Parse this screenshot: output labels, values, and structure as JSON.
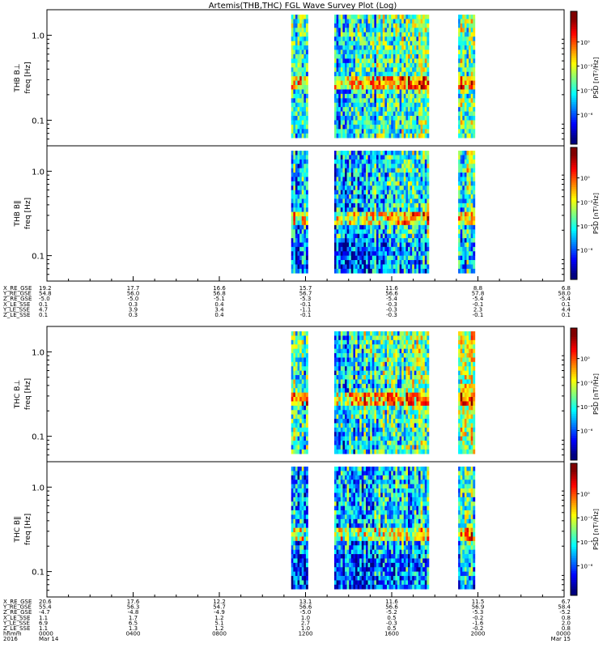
{
  "title": "Artemis(THB,THC) FGL Wave Survey Plot (Log)",
  "chart_data": [
    {
      "type": "heatmap",
      "probe": "THB",
      "component": "B⊥",
      "ylabel_parts": [
        "THB B⊥",
        "freq [Hz]"
      ],
      "yscale": "log",
      "ylim": [
        0.05,
        2.0
      ],
      "ytick_labels": [
        "1.0",
        "0.1"
      ],
      "ytick_values": [
        1.0,
        0.1
      ],
      "colorbar_label": "PSD [nT²/Hz]",
      "colorbar_ticks": [
        "10⁰",
        "10⁻²",
        "10⁻⁴",
        "10⁻⁶"
      ],
      "data_segments_hhmm": [
        [
          "1120",
          "1205"
        ],
        [
          "1320",
          "1740"
        ],
        [
          "1905",
          "1950"
        ]
      ],
      "peak_band_hz": 0.27
    },
    {
      "type": "heatmap",
      "probe": "THB",
      "component": "B∥",
      "ylabel_parts": [
        "THB B∥",
        "freq [Hz]"
      ],
      "yscale": "log",
      "ylim": [
        0.05,
        2.0
      ],
      "ytick_labels": [
        "1.0",
        "0.1"
      ],
      "ytick_values": [
        1.0,
        0.1
      ],
      "colorbar_label": "PSD [nT²/Hz]",
      "colorbar_ticks": [
        "10⁰",
        "10⁻²",
        "10⁻⁴",
        "10⁻⁶"
      ],
      "data_segments_hhmm": [
        [
          "1120",
          "1205"
        ],
        [
          "1320",
          "1740"
        ],
        [
          "1905",
          "1950"
        ]
      ],
      "peak_band_hz": 0.27
    },
    {
      "type": "heatmap",
      "probe": "THC",
      "component": "B⊥",
      "ylabel_parts": [
        "THC B⊥",
        "freq [Hz]"
      ],
      "yscale": "log",
      "ylim": [
        0.05,
        2.0
      ],
      "ytick_labels": [
        "1.0",
        "0.1"
      ],
      "ytick_values": [
        1.0,
        0.1
      ],
      "colorbar_label": "PSD [nT²/Hz]",
      "colorbar_ticks": [
        "10⁰",
        "10⁻²",
        "10⁻⁴",
        "10⁻⁶"
      ],
      "data_segments_hhmm": [
        [
          "1120",
          "1205"
        ],
        [
          "1320",
          "1740"
        ],
        [
          "1905",
          "1950"
        ]
      ],
      "peak_band_hz": 0.27
    },
    {
      "type": "heatmap",
      "probe": "THC",
      "component": "B∥",
      "ylabel_parts": [
        "THC B∥",
        "freq [Hz]"
      ],
      "yscale": "log",
      "ylim": [
        0.05,
        2.0
      ],
      "ytick_labels": [
        "1.0",
        "0.1"
      ],
      "ytick_values": [
        1.0,
        0.1
      ],
      "colorbar_label": "PSD [nT²/Hz]",
      "colorbar_ticks": [
        "10⁰",
        "10⁻²",
        "10⁻⁴",
        "10⁻⁶"
      ],
      "data_segments_hhmm": [
        [
          "1120",
          "1205"
        ],
        [
          "1320",
          "1740"
        ],
        [
          "1905",
          "1950"
        ]
      ],
      "peak_band_hz": 0.27
    }
  ],
  "thb_ephemeris": {
    "labels": [
      "X_RE_GSE",
      "Y_RE_GSE",
      "Z_RE_GSE",
      "X_LE_SSE",
      "Y_LE_SSE",
      "Z_LE_SSE"
    ],
    "columns": [
      [
        "19.2",
        "54.8",
        "-5.0",
        "0.1",
        "4.7",
        "0.1"
      ],
      [
        "17.7",
        "56.0",
        "-5.0",
        "0.3",
        "3.9",
        "0.3"
      ],
      [
        "16.6",
        "56.8",
        "-5.1",
        "0.4",
        "3.4",
        "0.4"
      ],
      [
        "15.7",
        "56.7",
        "-5.3",
        "-0.1",
        "-1.1",
        "-0.1"
      ],
      [
        "11.6",
        "56.6",
        "-5.4",
        "-0.3",
        "-0.3",
        "-0.3"
      ],
      [
        "8.8",
        "57.8",
        "-5.4",
        "-0.1",
        "2.3",
        "-0.1"
      ],
      [
        "6.8",
        "58.0",
        "-5.4",
        "0.1",
        "4.4",
        "0.1"
      ]
    ]
  },
  "thc_ephemeris": {
    "labels": [
      "X_RE_GSE",
      "Y_RE_GSE",
      "Z_RE_GSE",
      "X_LE_SSE",
      "Y_LE_SSE",
      "Z_LE_SSE",
      "hhmm",
      "2016"
    ],
    "columns": [
      [
        "20.6",
        "55.4",
        "-4.7",
        "1.1",
        "6.9",
        "1.1",
        "0000",
        "Mar 14"
      ],
      [
        "17.6",
        "56.3",
        "-4.8",
        "1.7",
        "6.5",
        "1.3",
        "0400",
        ""
      ],
      [
        "12.2",
        "54.7",
        "-4.9",
        "1.2",
        "5.1",
        "1.2",
        "0800",
        ""
      ],
      [
        "13.1",
        "56.6",
        "-5.0",
        "1.0",
        "2.7",
        "1.0",
        "1200",
        ""
      ],
      [
        "11.6",
        "56.6",
        "-5.2",
        "0.5",
        "-0.3",
        "0.5",
        "1600",
        ""
      ],
      [
        "11.5",
        "56.9",
        "-5.3",
        "-0.2",
        "-1.6",
        "-0.2",
        "2000",
        ""
      ],
      [
        "6.7",
        "58.4",
        "-5.2",
        "0.8",
        "2.0",
        "0.8",
        "0000",
        "Mar 15"
      ]
    ]
  }
}
